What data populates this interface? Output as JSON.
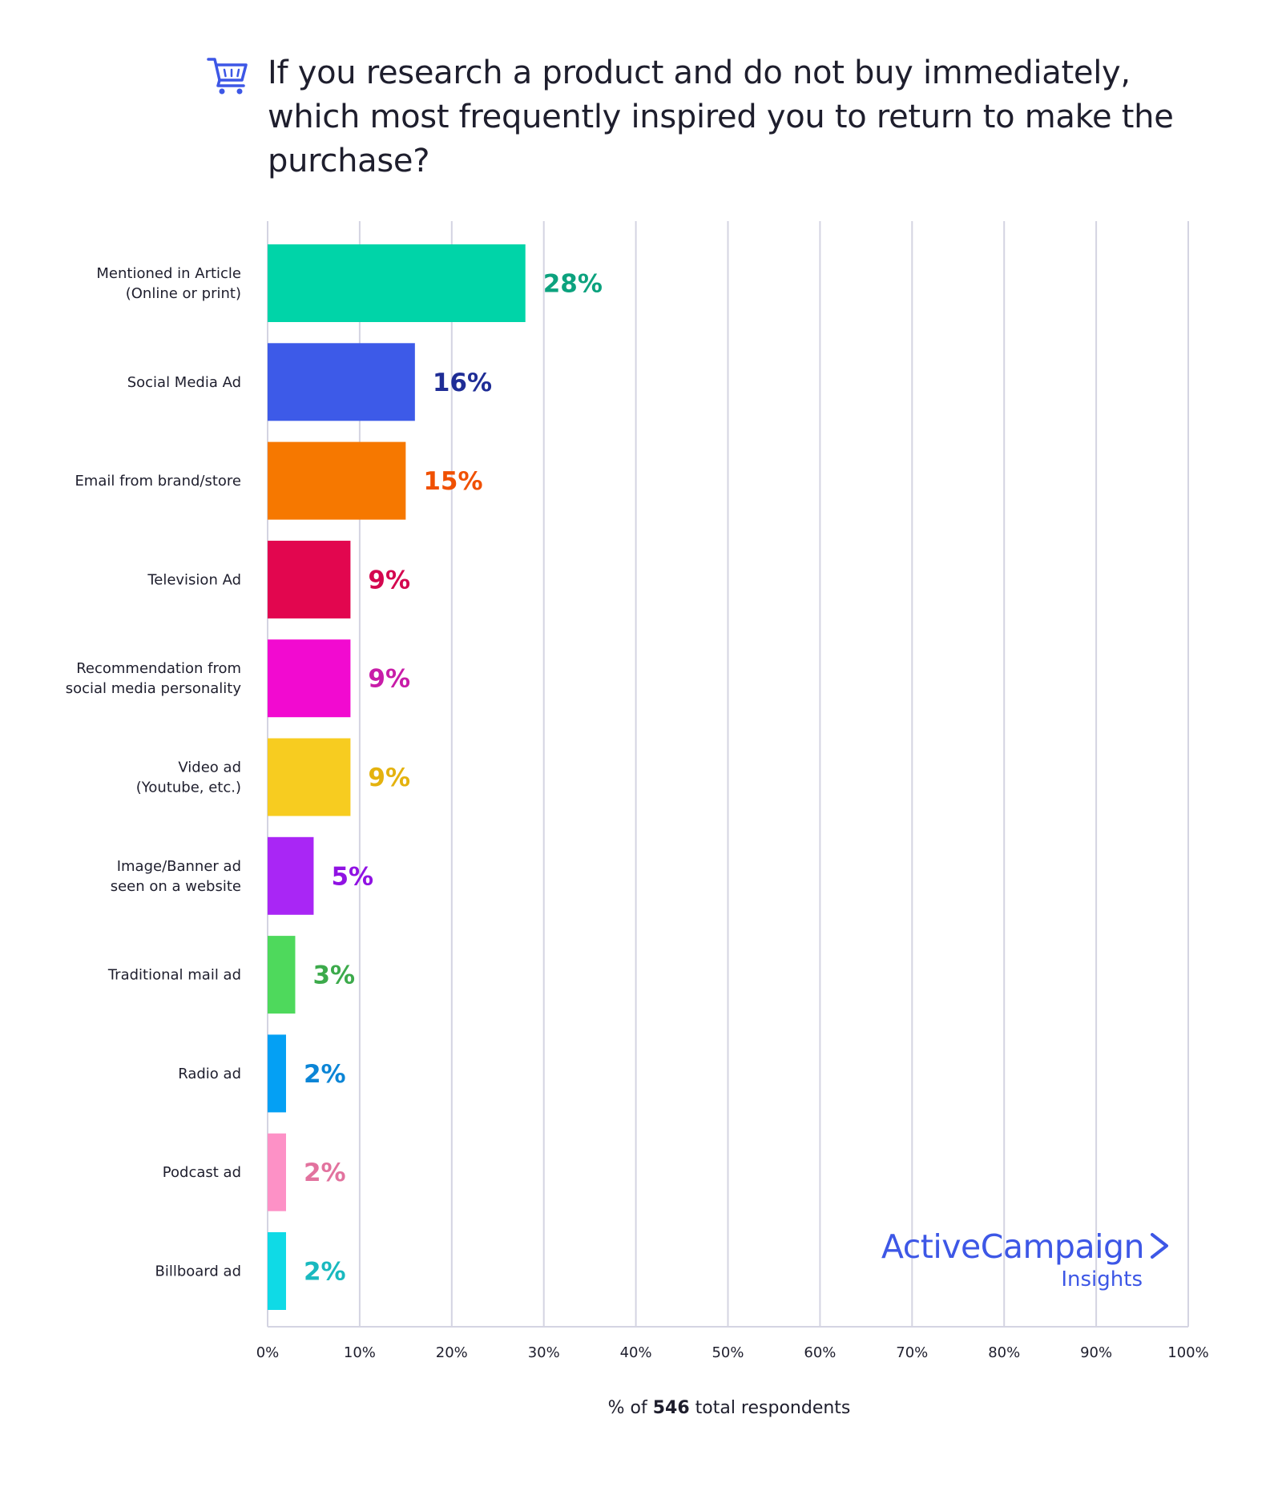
{
  "colors": {
    "grid": "#d4d4e2",
    "text": "#1e1e2d",
    "brand": "#3d57e6"
  },
  "title": {
    "icon": "shopping-cart-icon",
    "text": "If you research a product and do not buy immediately, which most frequently inspired you to return to make the purchase?"
  },
  "xlabel": {
    "prefix": "% of ",
    "count": "546",
    "suffix": " total respondents"
  },
  "logo": {
    "name": "ActiveCampaign",
    "sub": "Insights",
    "icon": "chevron-right-icon"
  },
  "chart_data": {
    "type": "bar",
    "orientation": "horizontal",
    "title": "If you research a product and do not buy immediately, which most frequently inspired you to return to make the purchase?",
    "xlabel": "% of 546 total respondents",
    "xlim": [
      0,
      100
    ],
    "xticks": [
      0,
      10,
      20,
      30,
      40,
      50,
      60,
      70,
      80,
      90,
      100
    ],
    "xtick_labels": [
      "0%",
      "10%",
      "20%",
      "30%",
      "40%",
      "50%",
      "60%",
      "70%",
      "80%",
      "90%",
      "100%"
    ],
    "grid": "vertical",
    "categories": [
      [
        "Mentioned in Article",
        "(Online or print)"
      ],
      [
        "Social Media Ad"
      ],
      [
        "Email from brand/store"
      ],
      [
        "Television Ad"
      ],
      [
        "Recommendation from",
        "social media personality"
      ],
      [
        "Video ad",
        "(Youtube, etc.)"
      ],
      [
        "Image/Banner ad",
        "seen on a website"
      ],
      [
        "Traditional mail ad"
      ],
      [
        "Radio ad"
      ],
      [
        "Podcast ad"
      ],
      [
        "Billboard ad"
      ]
    ],
    "values": [
      28,
      16,
      15,
      9,
      9,
      9,
      5,
      3,
      2,
      2,
      2
    ],
    "value_labels": [
      "28%",
      "16%",
      "15%",
      "9%",
      "9%",
      "9%",
      "5%",
      "3%",
      "2%",
      "2%",
      "2%"
    ],
    "bar_colors": [
      "#00d4a8",
      "#3d5ae8",
      "#f67800",
      "#e2064f",
      "#f20ad0",
      "#f7cc20",
      "#a926f5",
      "#4ed95c",
      "#04a0f4",
      "#fd91c6",
      "#0fdae6"
    ],
    "label_colors": [
      "#0ca27e",
      "#1f2d96",
      "#f05000",
      "#d4074f",
      "#c81ca8",
      "#e4b20e",
      "#9012e3",
      "#3caa4b",
      "#0b85d6",
      "#e2729e",
      "#19b9bf"
    ]
  }
}
